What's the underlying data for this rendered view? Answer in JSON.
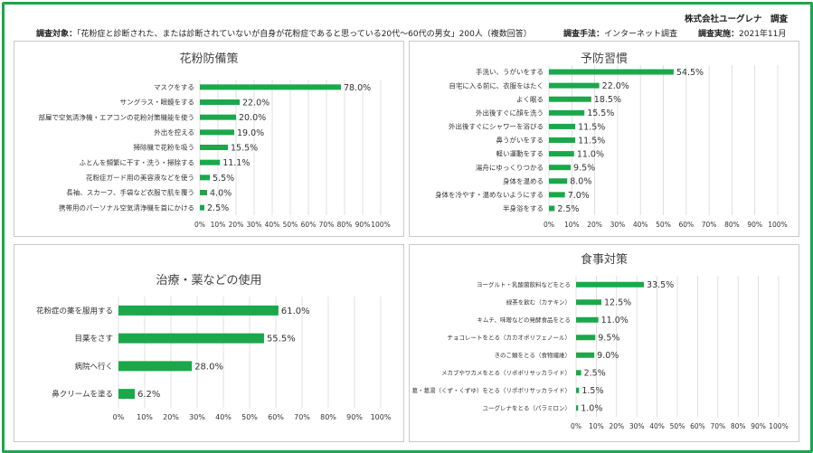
{
  "header": {
    "company": "株式会社ユーグレナ　調査",
    "subject_label": "調査対象：",
    "subject": "「花粉症と診断された、または診断されていないが自身が花粉症であると思っている20代〜60代の男女」200人（複数回答）",
    "method_label": "調査手法：",
    "method": "インターネット調査",
    "date_label": "調査実施：",
    "date": "2021年11月"
  },
  "colors": {
    "bar": "#1aa84a",
    "frame": "#1aa84a",
    "grid": "#d9d9d9"
  },
  "chart_data": [
    {
      "id": "pollen",
      "type": "bar",
      "orientation": "horizontal",
      "title": "花粉防備策",
      "categories": [
        "マスクをする",
        "サングラス・眼鏡をする",
        "部屋で空気清浄機・エアコンの花粉対策機能を使う",
        "外出を控える",
        "掃除機で花粉を吸う",
        "ふとんを頻繁に干す・洗う・掃除する",
        "花粉症ガード用の美容液などを使う",
        "長袖、スカーフ、手袋など衣服で肌を覆う",
        "携帯用のパーソナル空気清浄機を首にかける"
      ],
      "values": [
        78.0,
        22.0,
        20.0,
        19.0,
        15.5,
        11.1,
        5.5,
        4.0,
        2.5
      ],
      "xlim": [
        0,
        100
      ],
      "ticks": [
        "0%",
        "10%",
        "20%",
        "30%",
        "40%",
        "50%",
        "60%",
        "70%",
        "80%",
        "90%",
        "100%"
      ],
      "grid": true
    },
    {
      "id": "prevent",
      "type": "bar",
      "orientation": "horizontal",
      "title": "予防習慣",
      "categories": [
        "手洗い、うがいをする",
        "自宅に入る前に、衣服をはたく",
        "よく眠る",
        "外出後すぐに顔を洗う",
        "外出後すぐにシャワーを浴びる",
        "鼻うがいをする",
        "軽い運動をする",
        "湯舟にゆっくりつかる",
        "身体を温める",
        "身体を冷やす・温めないようにする",
        "半身浴をする"
      ],
      "values": [
        54.5,
        22.0,
        18.5,
        15.5,
        11.5,
        11.5,
        11.0,
        9.5,
        8.0,
        7.0,
        2.5
      ],
      "xlim": [
        0,
        100
      ],
      "ticks": [
        "0%",
        "10%",
        "20%",
        "30%",
        "40%",
        "50%",
        "60%",
        "70%",
        "80%",
        "90%",
        "100%"
      ],
      "grid": true
    },
    {
      "id": "medicine",
      "type": "bar",
      "orientation": "horizontal",
      "title": "治療・薬などの使用",
      "categories": [
        "花粉症の薬を服用する",
        "目薬をさす",
        "病院へ行く",
        "鼻クリームを塗る"
      ],
      "values": [
        61.0,
        55.5,
        28.0,
        6.2
      ],
      "xlim": [
        0,
        100
      ],
      "ticks": [
        "0%",
        "10%",
        "20%",
        "30%",
        "40%",
        "50%",
        "60%",
        "70%",
        "80%",
        "90%",
        "100%"
      ],
      "grid": true
    },
    {
      "id": "diet",
      "type": "bar",
      "orientation": "horizontal",
      "title": "食事対策",
      "categories": [
        "ヨーグルト・乳酸菌飲料などをとる",
        "緑茶を飲む（カテキン）",
        "キムチ、味噌などの発酵食品をとる",
        "チョコレートをとる（カカオポリフェノール）",
        "きのこ類をとる（食物繊維）",
        "メカブやワカメをとる（リポポリサッカライド）",
        "葛・葛湯（くず・くずゆ）をとる（リポポリサッカライド）",
        "ユーグレナをとる（パラミロン）"
      ],
      "values": [
        33.5,
        12.5,
        11.0,
        9.5,
        9.0,
        2.5,
        1.5,
        1.0
      ],
      "xlim": [
        0,
        100
      ],
      "ticks": [
        "0%",
        "10%",
        "20%",
        "30%",
        "40%",
        "50%",
        "60%",
        "70%",
        "80%",
        "90%",
        "100%"
      ],
      "grid": true
    }
  ]
}
